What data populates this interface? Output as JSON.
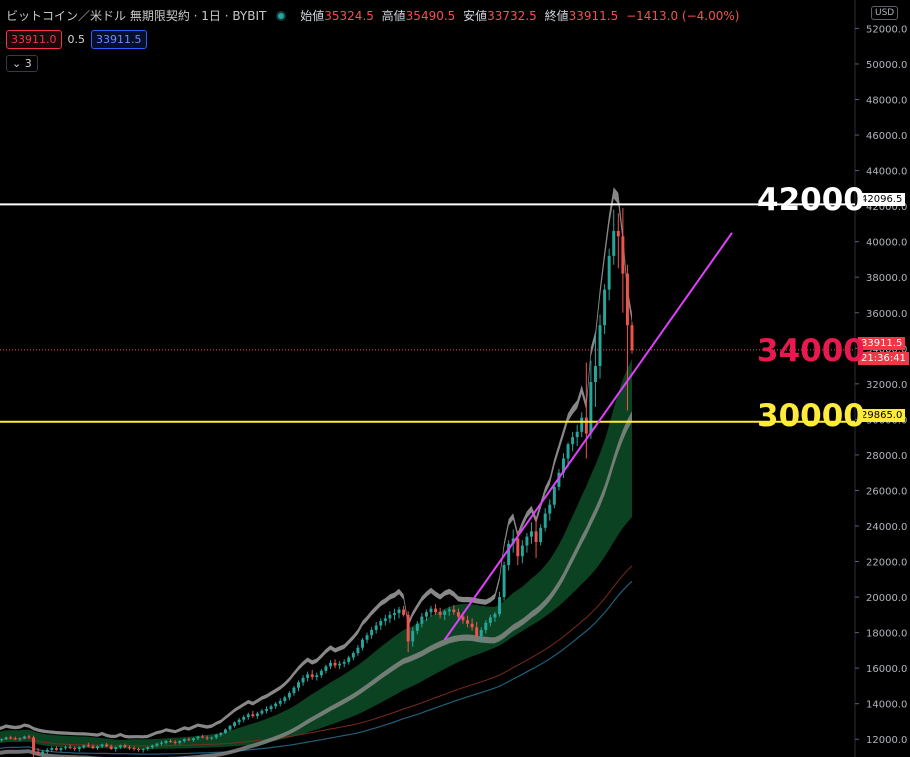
{
  "legend": {
    "symbol": "ビットコイン／米ドル 無期限契約 · 1日 · BYBIT",
    "open_label": "始値",
    "open_value": "35324.5",
    "high_label": "高値",
    "high_value": "35490.5",
    "low_label": "安値",
    "low_value": "33732.5",
    "close_label": "終値",
    "close_value": "33911.5",
    "change": "−1413.0 (−4.00%)"
  },
  "trade": {
    "sell": "33911.0",
    "spread": "0.5",
    "buy": "33911.5"
  },
  "indicators_toggle": "3",
  "currency": "USD",
  "price_tags": {
    "level_white": "42096.5",
    "last_price": "33911.5",
    "countdown": "21:36:41",
    "level_yellow": "29865.0"
  },
  "annotations": {
    "a42000": "42000",
    "a34000": "34000",
    "a30000": "30000"
  },
  "colors": {
    "up": "#26a69a",
    "down": "#ef5350",
    "white_line": "#ffffff",
    "yellow_line": "#ffeb3b",
    "trend": "#e040fb"
  },
  "chart_data": {
    "type": "candlestick",
    "y_axis_ticks": [
      12000,
      14000,
      16000,
      18000,
      20000,
      22000,
      24000,
      26000,
      28000,
      30000,
      32000,
      34000,
      36000,
      38000,
      40000,
      42000,
      44000,
      46000,
      48000,
      50000,
      52000
    ],
    "ylim": [
      11000,
      53600
    ],
    "horizontal_lines": [
      {
        "price": 42096.5,
        "color": "#ffffff"
      },
      {
        "price": 29865.0,
        "color": "#ffeb3b"
      },
      {
        "price": 33911.5,
        "color": "#ef5350",
        "style": "dotted"
      }
    ],
    "trendline": {
      "from_price": 17600,
      "to_price": 40500
    },
    "candles": [
      [
        12000,
        12100,
        11900,
        11950
      ],
      [
        11950,
        12050,
        11850,
        12000
      ],
      [
        12000,
        12150,
        11950,
        12100
      ],
      [
        12100,
        12200,
        12000,
        12050
      ],
      [
        12050,
        12150,
        11950,
        12000
      ],
      [
        12000,
        12100,
        11900,
        12050
      ],
      [
        12050,
        12200,
        12000,
        12150
      ],
      [
        12150,
        12250,
        12050,
        12100
      ],
      [
        12100,
        12200,
        11000,
        11300
      ],
      [
        11300,
        11500,
        11100,
        11200
      ],
      [
        11200,
        11400,
        11000,
        11300
      ],
      [
        11300,
        11500,
        11150,
        11400
      ],
      [
        11400,
        11600,
        11300,
        11500
      ],
      [
        11500,
        11600,
        11350,
        11400
      ],
      [
        11400,
        11550,
        11300,
        11500
      ],
      [
        11500,
        11650,
        11400,
        11550
      ],
      [
        11550,
        11700,
        11450,
        11500
      ],
      [
        11500,
        11600,
        11350,
        11450
      ],
      [
        11450,
        11600,
        11300,
        11550
      ],
      [
        11550,
        11700,
        11450,
        11650
      ],
      [
        11650,
        11800,
        11550,
        11600
      ],
      [
        11600,
        11700,
        11450,
        11500
      ],
      [
        11500,
        11650,
        11400,
        11600
      ],
      [
        11600,
        11750,
        11500,
        11700
      ],
      [
        11700,
        11800,
        11550,
        11600
      ],
      [
        11600,
        11700,
        11400,
        11450
      ],
      [
        11450,
        11600,
        11300,
        11550
      ],
      [
        11550,
        11700,
        11450,
        11650
      ],
      [
        11650,
        11750,
        11500,
        11550
      ],
      [
        11550,
        11650,
        11400,
        11500
      ],
      [
        11500,
        11600,
        11350,
        11450
      ],
      [
        11450,
        11550,
        11300,
        11400
      ],
      [
        11400,
        11500,
        11250,
        11450
      ],
      [
        11450,
        11600,
        11350,
        11550
      ],
      [
        11550,
        11700,
        11450,
        11650
      ],
      [
        11650,
        11800,
        11550,
        11750
      ],
      [
        11750,
        11900,
        11650,
        11800
      ],
      [
        11800,
        11950,
        11700,
        11900
      ],
      [
        11900,
        12000,
        11800,
        11850
      ],
      [
        11850,
        11950,
        11700,
        11800
      ],
      [
        11800,
        11950,
        11700,
        11900
      ],
      [
        11900,
        12050,
        11800,
        12000
      ],
      [
        12000,
        12100,
        11900,
        11950
      ],
      [
        11950,
        12100,
        11850,
        12050
      ],
      [
        12050,
        12200,
        11950,
        12150
      ],
      [
        12150,
        12250,
        12050,
        12100
      ],
      [
        12100,
        12200,
        11950,
        12050
      ],
      [
        12050,
        12150,
        11950,
        12100
      ],
      [
        12100,
        12300,
        12000,
        12250
      ],
      [
        12250,
        12400,
        12150,
        12350
      ],
      [
        12350,
        12600,
        12300,
        12550
      ],
      [
        12550,
        12800,
        12450,
        12750
      ],
      [
        12750,
        13000,
        12650,
        12950
      ],
      [
        12950,
        13200,
        12800,
        13100
      ],
      [
        13100,
        13350,
        12950,
        13250
      ],
      [
        13250,
        13500,
        13100,
        13400
      ],
      [
        13400,
        13600,
        13200,
        13300
      ],
      [
        13300,
        13550,
        13150,
        13450
      ],
      [
        13450,
        13700,
        13350,
        13600
      ],
      [
        13600,
        13850,
        13450,
        13700
      ],
      [
        13700,
        13950,
        13550,
        13850
      ],
      [
        13850,
        14100,
        13700,
        14000
      ],
      [
        14000,
        14300,
        13850,
        14150
      ],
      [
        14150,
        14450,
        14000,
        14350
      ],
      [
        14350,
        14700,
        14200,
        14600
      ],
      [
        14600,
        15000,
        14450,
        14900
      ],
      [
        14900,
        15300,
        14700,
        15200
      ],
      [
        15200,
        15600,
        15000,
        15450
      ],
      [
        15450,
        15800,
        15250,
        15650
      ],
      [
        15650,
        15900,
        15350,
        15500
      ],
      [
        15500,
        15750,
        15300,
        15600
      ],
      [
        15600,
        15950,
        15450,
        15850
      ],
      [
        15850,
        16200,
        15700,
        16100
      ],
      [
        16100,
        16450,
        15950,
        16300
      ],
      [
        16300,
        16500,
        16000,
        16150
      ],
      [
        16150,
        16400,
        15950,
        16250
      ],
      [
        16250,
        16500,
        16050,
        16350
      ],
      [
        16350,
        16700,
        16200,
        16600
      ],
      [
        16600,
        16950,
        16450,
        16850
      ],
      [
        16850,
        17300,
        16700,
        17150
      ],
      [
        17150,
        17700,
        17000,
        17600
      ],
      [
        17600,
        18000,
        17400,
        17850
      ],
      [
        17850,
        18300,
        17650,
        18150
      ],
      [
        18150,
        18600,
        17950,
        18400
      ],
      [
        18400,
        18800,
        18150,
        18650
      ],
      [
        18650,
        19000,
        18400,
        18800
      ],
      [
        18800,
        19200,
        18550,
        19000
      ],
      [
        19000,
        19350,
        18700,
        19100
      ],
      [
        19100,
        19450,
        18800,
        19300
      ],
      [
        19300,
        19500,
        18900,
        19000
      ],
      [
        19000,
        19200,
        16900,
        17500
      ],
      [
        17500,
        18300,
        17200,
        18100
      ],
      [
        18100,
        18650,
        17900,
        18500
      ],
      [
        18500,
        19100,
        18300,
        18900
      ],
      [
        18900,
        19300,
        18650,
        19150
      ],
      [
        19150,
        19500,
        18900,
        19350
      ],
      [
        19350,
        19600,
        19000,
        19150
      ],
      [
        19150,
        19400,
        18800,
        19000
      ],
      [
        19000,
        19300,
        18700,
        19200
      ],
      [
        19200,
        19450,
        18950,
        19300
      ],
      [
        19300,
        19550,
        19000,
        19150
      ],
      [
        19150,
        19350,
        18700,
        18900
      ],
      [
        18900,
        19150,
        18500,
        18700
      ],
      [
        18700,
        18950,
        18300,
        18500
      ],
      [
        18500,
        18800,
        18100,
        18300
      ],
      [
        18300,
        18600,
        17700,
        17800
      ],
      [
        17800,
        18300,
        17500,
        18150
      ],
      [
        18150,
        18700,
        17950,
        18550
      ],
      [
        18550,
        19000,
        18350,
        18850
      ],
      [
        18850,
        19150,
        18600,
        19050
      ],
      [
        19050,
        20300,
        18900,
        20000
      ],
      [
        20000,
        22000,
        19800,
        21800
      ],
      [
        21800,
        23200,
        21500,
        23000
      ],
      [
        23000,
        23800,
        22500,
        23300
      ],
      [
        23300,
        23700,
        21800,
        22300
      ],
      [
        22300,
        23200,
        21900,
        22900
      ],
      [
        22900,
        23600,
        22500,
        23400
      ],
      [
        23400,
        24200,
        23000,
        23700
      ],
      [
        23700,
        24500,
        22200,
        23100
      ],
      [
        23100,
        24100,
        22900,
        23900
      ],
      [
        23900,
        25000,
        23700,
        24700
      ],
      [
        24700,
        25500,
        24300,
        25200
      ],
      [
        25200,
        26400,
        25000,
        26200
      ],
      [
        26200,
        27200,
        26000,
        27000
      ],
      [
        27000,
        28100,
        26700,
        27800
      ],
      [
        27800,
        28700,
        27300,
        28600
      ],
      [
        28600,
        29300,
        28200,
        29000
      ],
      [
        29000,
        29700,
        28500,
        29300
      ],
      [
        29300,
        30400,
        29000,
        30100
      ],
      [
        30100,
        33200,
        27800,
        29200
      ],
      [
        29200,
        33300,
        28900,
        32100
      ],
      [
        32100,
        34800,
        30700,
        33000
      ],
      [
        33000,
        35900,
        32300,
        35300
      ],
      [
        35300,
        37600,
        34800,
        37300
      ],
      [
        37300,
        39600,
        36700,
        39200
      ],
      [
        39200,
        41800,
        38700,
        40600
      ],
      [
        40600,
        41600,
        38500,
        40300
      ],
      [
        40300,
        41900,
        36000,
        38200
      ],
      [
        38200,
        38700,
        30500,
        35300
      ],
      [
        35300,
        35500,
        33700,
        33900
      ]
    ]
  }
}
